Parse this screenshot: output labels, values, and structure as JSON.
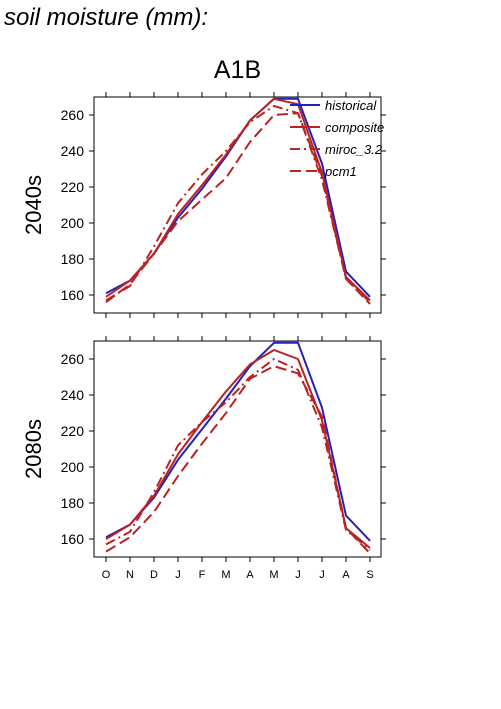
{
  "page_title": "soil moisture (mm):",
  "chart_data": {
    "type": "line",
    "title": "A1B",
    "months": [
      "O",
      "N",
      "D",
      "J",
      "F",
      "M",
      "A",
      "M",
      "J",
      "J",
      "A",
      "S"
    ],
    "legend": {
      "placement": "top-right",
      "entries": [
        "historical",
        "composite",
        "miroc_3.2",
        "pcm1"
      ]
    },
    "series_styles": {
      "historical": {
        "color": "#2222bb",
        "dash": "solid"
      },
      "composite": {
        "color": "#bb2222",
        "dash": "solid"
      },
      "miroc_3.2": {
        "color": "#bb2222",
        "dash": "dash-dot"
      },
      "pcm1": {
        "color": "#bb2222",
        "dash": "long-dash"
      }
    },
    "panels": [
      {
        "row_label": "2040s",
        "ylim": [
          150,
          270
        ],
        "yticks": [
          160,
          180,
          200,
          220,
          240,
          260
        ],
        "series": [
          {
            "name": "historical",
            "values": [
              161,
              168,
              183,
              203,
              219,
              237,
              257,
              269,
              269,
              233,
              173,
              159
            ]
          },
          {
            "name": "composite",
            "values": [
              159,
              168,
              183,
              205,
              221,
              238,
              257,
              269,
              266,
              228,
              170,
              157
            ]
          },
          {
            "name": "miroc_3.2",
            "values": [
              157,
              165,
              187,
              211,
              227,
              240,
              256,
              265,
              261,
              224,
              169,
              156
            ]
          },
          {
            "name": "pcm1",
            "values": [
              156,
              166,
              183,
              201,
              213,
              225,
              245,
              260,
              261,
              226,
              169,
              155
            ]
          }
        ]
      },
      {
        "row_label": "2080s",
        "ylim": [
          150,
          270
        ],
        "yticks": [
          160,
          180,
          200,
          220,
          240,
          260
        ],
        "series": [
          {
            "name": "historical",
            "values": [
              161,
              168,
              183,
              204,
              221,
              238,
              256,
              269,
              269,
              233,
              173,
              159
            ]
          },
          {
            "name": "composite",
            "values": [
              160,
              168,
              184,
              207,
              225,
              242,
              257,
              265,
              260,
              226,
              166,
              155
            ]
          },
          {
            "name": "miroc_3.2",
            "values": [
              157,
              164,
              186,
              212,
              225,
              236,
              250,
              260,
              254,
              222,
              165,
              154
            ]
          },
          {
            "name": "pcm1",
            "values": [
              153,
              161,
              175,
              195,
              213,
              230,
              249,
              256,
              252,
              228,
              166,
              152
            ]
          }
        ]
      }
    ]
  }
}
